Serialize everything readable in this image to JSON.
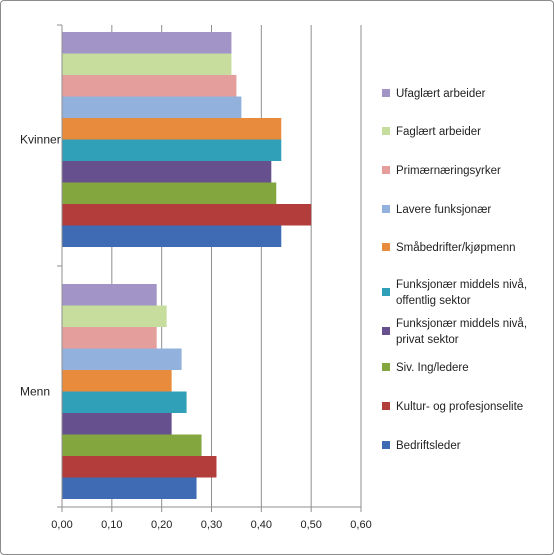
{
  "chart_data": {
    "type": "bar",
    "orientation": "horizontal",
    "title": "",
    "xlabel": "",
    "ylabel": "",
    "xlim": [
      0,
      0.6
    ],
    "x_ticks": [
      "0,00",
      "0,10",
      "0,20",
      "0,30",
      "0,40",
      "0,50",
      "0,60"
    ],
    "grid": true,
    "legend_position": "right",
    "categories": [
      "Kvinner",
      "Menn"
    ],
    "series": [
      {
        "name": "Ufaglært arbeider",
        "color": "#A294C6",
        "values": [
          0.34,
          0.19
        ]
      },
      {
        "name": "Faglært arbeider",
        "color": "#C6DD9E",
        "values": [
          0.34,
          0.21
        ]
      },
      {
        "name": "Primærnæringsyrker",
        "color": "#E49E9C",
        "values": [
          0.35,
          0.19
        ]
      },
      {
        "name": "Lavere funksjonær",
        "color": "#92B1DC",
        "values": [
          0.36,
          0.24
        ]
      },
      {
        "name": "Småbedrifter/kjøpmenn",
        "color": "#E88B3C",
        "values": [
          0.44,
          0.22
        ]
      },
      {
        "name": "Funksjonær middels nivå, offentlig sektor",
        "label_lines": [
          "Funksjonær middels nivå,",
          "offentlig sektor"
        ],
        "color": "#2FA0B8",
        "values": [
          0.44,
          0.25
        ]
      },
      {
        "name": "Funksjonær middels nivå, privat sektor",
        "label_lines": [
          "Funksjonær middels nivå,",
          "privat sektor"
        ],
        "color": "#66508E",
        "values": [
          0.42,
          0.22
        ]
      },
      {
        "name": "Siv. Ing/ledere",
        "color": "#84A63E",
        "values": [
          0.43,
          0.28
        ]
      },
      {
        "name": "Kultur- og profesjonselite",
        "color": "#B23D3A",
        "values": [
          0.5,
          0.31
        ]
      },
      {
        "name": "Bedriftsleder",
        "color": "#3F6BB4",
        "values": [
          0.44,
          0.27
        ]
      }
    ]
  }
}
